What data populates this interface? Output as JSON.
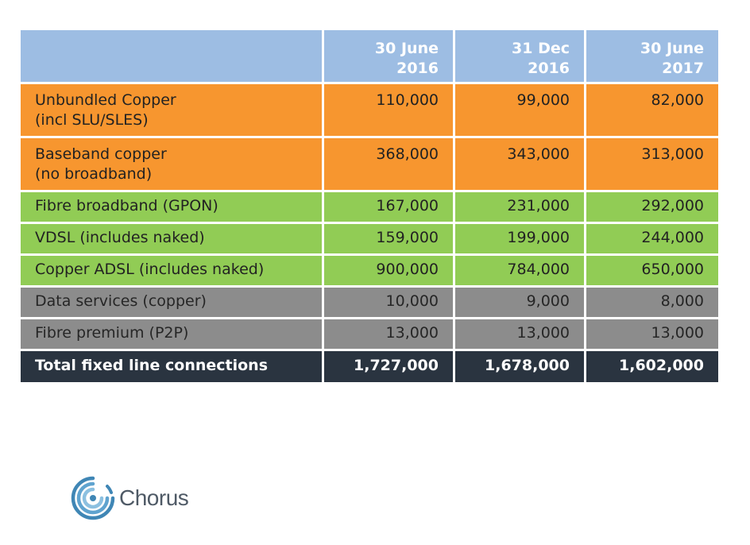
{
  "colors": {
    "header": "#9dbde3",
    "orange": "#f7962f",
    "green": "#91cc55",
    "grey": "#8c8c8c",
    "total": "#2a3440",
    "logo_blue": "#3f86b5",
    "logo_text": "#4f5a66"
  },
  "chart_data": {
    "type": "table",
    "columns": [
      {
        "line1": "30 June",
        "line2": "2016"
      },
      {
        "line1": "31 Dec",
        "line2": "2016"
      },
      {
        "line1": "30 June",
        "line2": "2017"
      }
    ],
    "rows": [
      {
        "label_line1": "Unbundled Copper",
        "label_line2": "(incl SLU/SLES)",
        "values": [
          "110,000",
          "99,000",
          "82,000"
        ],
        "group": "orange"
      },
      {
        "label_line1": "Baseband copper",
        "label_line2": "(no broadband)",
        "values": [
          "368,000",
          "343,000",
          "313,000"
        ],
        "group": "orange"
      },
      {
        "label_line1": "Fibre broadband (GPON)",
        "values": [
          "167,000",
          "231,000",
          "292,000"
        ],
        "group": "green"
      },
      {
        "label_line1": "VDSL (includes naked)",
        "values": [
          "159,000",
          "199,000",
          "244,000"
        ],
        "group": "green"
      },
      {
        "label_line1": "Copper ADSL (includes naked)",
        "values": [
          "900,000",
          "784,000",
          "650,000"
        ],
        "group": "green"
      },
      {
        "label_line1": "Data services (copper)",
        "values": [
          "10,000",
          "9,000",
          "8,000"
        ],
        "group": "grey"
      },
      {
        "label_line1": "Fibre premium (P2P)",
        "values": [
          "13,000",
          "13,000",
          "13,000"
        ],
        "group": "grey"
      }
    ],
    "total": {
      "label": "Total fixed line connections",
      "values": [
        "1,727,000",
        "1,678,000",
        "1,602,000"
      ]
    }
  },
  "logo": {
    "text": "Chorus",
    "icon": "chorus-logo-icon"
  }
}
